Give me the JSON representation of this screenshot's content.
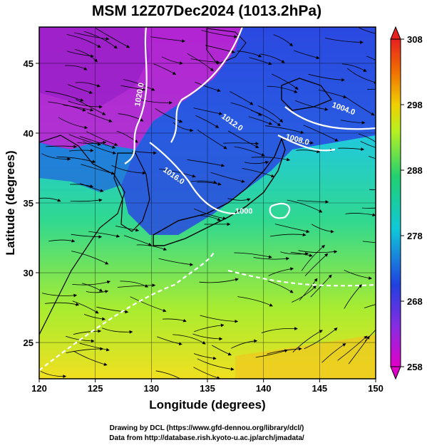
{
  "title": "MSM 12Z07Dec2024 (1013.2hPa)",
  "x_axis": {
    "label": "Longitude (degrees)",
    "range": [
      120,
      150
    ],
    "ticks": [
      120,
      125,
      130,
      135,
      140,
      145,
      150
    ]
  },
  "y_axis": {
    "label": "Latitude  (degrees)",
    "range": [
      22.4,
      47.6
    ],
    "ticks": [
      25,
      30,
      35,
      40,
      45
    ]
  },
  "colorbar": {
    "ticks": [
      258,
      268,
      278,
      288,
      298,
      308
    ],
    "range": [
      258,
      308
    ],
    "colors": [
      "#e000c8",
      "#8a2be2",
      "#2040e0",
      "#10c8d8",
      "#20d070",
      "#b8f020",
      "#f0d000",
      "#f07000",
      "#e82020"
    ]
  },
  "contours": [
    {
      "label": "1020.0"
    },
    {
      "label": "1012.0"
    },
    {
      "label": "1016.0"
    },
    {
      "label": "1004.0"
    },
    {
      "label": "1008.0"
    },
    {
      "label": "1000"
    }
  ],
  "credits": {
    "line1": "Drawing by DCL (https://www.gfd-dennou.org/library/dcl/)",
    "line2": "Data from http://database.rish.kyoto-u.ac.jp/arch/jmadata/"
  }
}
